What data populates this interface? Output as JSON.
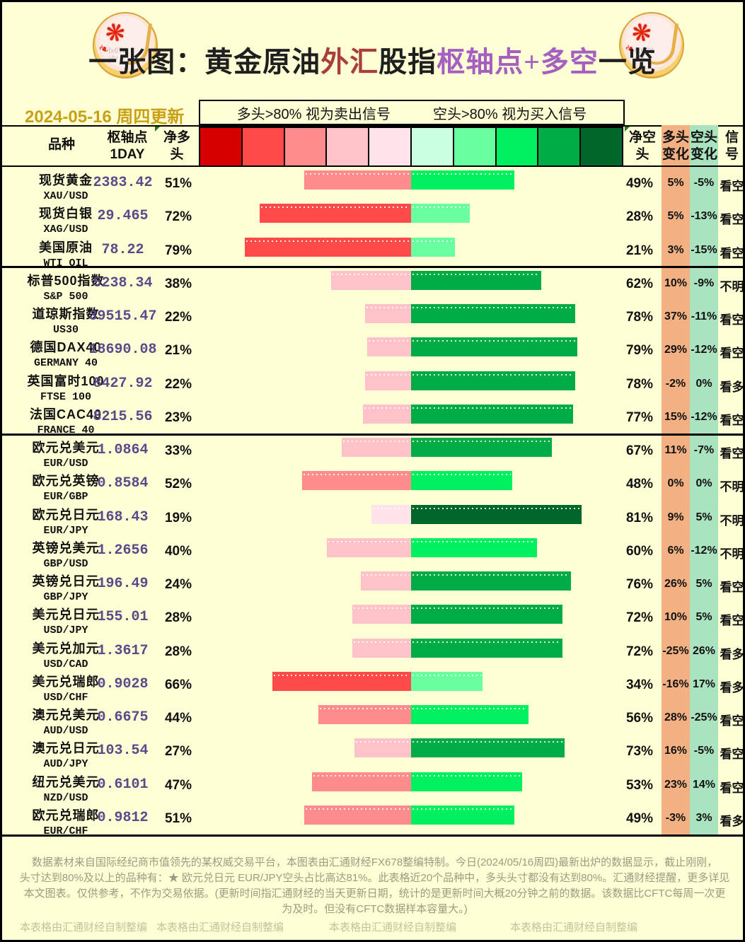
{
  "title": {
    "segments": [
      {
        "text": "一张图：黄金原油",
        "color": "#1F1F1F"
      },
      {
        "text": "外汇",
        "color": "#A93E3E"
      },
      {
        "text": "股指",
        "color": "#1F1F1F"
      },
      {
        "text": "枢轴点+多空",
        "color": "#A45FC0"
      },
      {
        "text": "一览",
        "color": "#1F1F1F"
      }
    ],
    "logo_watermark": "fx678\nylv"
  },
  "date_text": "2024-05-16 周四更新",
  "legend": {
    "long_note": "多头>80% 视为卖出信号",
    "short_note": "空头>80% 视为买入信号"
  },
  "columns": {
    "symbol": "品种",
    "pivot": "枢轴点\n1DAY",
    "net_long": "净多\n头",
    "net_short": "净空\n头",
    "long_change": "多头\n变化",
    "short_change": "空头\n变化",
    "signal": "信\n号"
  },
  "colors": {
    "scale": [
      "#D60000",
      "#FF4A4A",
      "#FF8C8C",
      "#FFC2C9",
      "#FFE3EA",
      "#CBFFE1",
      "#69FF9F",
      "#00F05F",
      "#00AC45",
      "#00662A"
    ],
    "long_change_col_bg": "#F3B183",
    "short_change_col_bg": "#A9E3BF",
    "background": "#FFFFD6",
    "date_text": "#C9A117",
    "pivot_text": "#5A4A8A"
  },
  "chart_data": {
    "type": "bar",
    "title": "一张图：黄金原油外汇股指枢轴点+多空一览",
    "note": "净多头(红色,左) 与 净空头(绿色,右) 百分比对称条形图，颜色深浅按20%分档",
    "categories": [
      "XAU/USD",
      "XAG/USD",
      "WTI OIL",
      "S&P 500",
      "US30",
      "GERMANY 40",
      "FTSE 100",
      "FRANCE 40",
      "EUR/USD",
      "EUR/GBP",
      "EUR/JPY",
      "GBP/USD",
      "GBP/JPY",
      "USD/JPY",
      "USD/CAD",
      "USD/CHF",
      "AUD/USD",
      "AUD/JPY",
      "NZD/USD",
      "EUR/CHF"
    ],
    "series": [
      {
        "name": "净多头%",
        "values": [
          51,
          72,
          79,
          38,
          22,
          21,
          22,
          23,
          33,
          52,
          19,
          40,
          24,
          28,
          28,
          66,
          44,
          27,
          47,
          51
        ]
      },
      {
        "name": "净空头%",
        "values": [
          49,
          28,
          21,
          62,
          78,
          79,
          78,
          77,
          67,
          48,
          81,
          60,
          76,
          72,
          72,
          34,
          56,
          73,
          53,
          49
        ]
      }
    ],
    "xlim": [
      -100,
      100
    ]
  },
  "rows": [
    {
      "name_cn": "现货黄金",
      "name_en": "XAU/USD",
      "pivot": "2383.42",
      "long_pct": 51,
      "short_pct": 49,
      "long_chg": "5%",
      "short_chg": "-5%",
      "signal": "看空"
    },
    {
      "name_cn": "现货白银",
      "name_en": "XAG/USD",
      "pivot": "29.465",
      "long_pct": 72,
      "short_pct": 28,
      "long_chg": "5%",
      "short_chg": "-13%",
      "signal": "看空"
    },
    {
      "name_cn": "美国原油",
      "name_en": "WTI OIL",
      "pivot": "78.22",
      "long_pct": 79,
      "short_pct": 21,
      "long_chg": "3%",
      "short_chg": "-15%",
      "signal": "看空",
      "group_end": true
    },
    {
      "name_cn": "标普500指数",
      "name_en": "S&P 500",
      "pivot": "5238.34",
      "long_pct": 38,
      "short_pct": 62,
      "long_chg": "10%",
      "short_chg": "-9%",
      "signal": "不明"
    },
    {
      "name_cn": "道琼斯指数",
      "name_en": "US30",
      "pivot": "39515.47",
      "long_pct": 22,
      "short_pct": 78,
      "long_chg": "37%",
      "short_chg": "-11%",
      "signal": "看空"
    },
    {
      "name_cn": "德国DAX40",
      "name_en": "GERMANY 40",
      "pivot": "18690.08",
      "long_pct": 21,
      "short_pct": 79,
      "long_chg": "29%",
      "short_chg": "-12%",
      "signal": "看空"
    },
    {
      "name_cn": "英国富时100",
      "name_en": "FTSE 100",
      "pivot": "8427.92",
      "long_pct": 22,
      "short_pct": 78,
      "long_chg": "-2%",
      "short_chg": "0%",
      "signal": "看多"
    },
    {
      "name_cn": "法国CAC40",
      "name_en": "FRANCE 40",
      "pivot": "8215.56",
      "long_pct": 23,
      "short_pct": 77,
      "long_chg": "15%",
      "short_chg": "-12%",
      "signal": "看空",
      "group_end": true
    },
    {
      "name_cn": "欧元兑美元",
      "name_en": "EUR/USD",
      "pivot": "1.0864",
      "long_pct": 33,
      "short_pct": 67,
      "long_chg": "11%",
      "short_chg": "-7%",
      "signal": "看空"
    },
    {
      "name_cn": "欧元兑英镑",
      "name_en": "EUR/GBP",
      "pivot": "0.8584",
      "long_pct": 52,
      "short_pct": 48,
      "long_chg": "0%",
      "short_chg": "0%",
      "signal": "不明"
    },
    {
      "name_cn": "欧元兑日元",
      "name_en": "EUR/JPY",
      "pivot": "168.43",
      "long_pct": 19,
      "short_pct": 81,
      "long_chg": "9%",
      "short_chg": "5%",
      "signal": "不明"
    },
    {
      "name_cn": "英镑兑美元",
      "name_en": "GBP/USD",
      "pivot": "1.2656",
      "long_pct": 40,
      "short_pct": 60,
      "long_chg": "6%",
      "short_chg": "-12%",
      "signal": "不明"
    },
    {
      "name_cn": "英镑兑日元",
      "name_en": "GBP/JPY",
      "pivot": "196.49",
      "long_pct": 24,
      "short_pct": 76,
      "long_chg": "26%",
      "short_chg": "5%",
      "signal": "看空"
    },
    {
      "name_cn": "美元兑日元",
      "name_en": "USD/JPY",
      "pivot": "155.01",
      "long_pct": 28,
      "short_pct": 72,
      "long_chg": "10%",
      "short_chg": "5%",
      "signal": "看空"
    },
    {
      "name_cn": "美元兑加元",
      "name_en": "USD/CAD",
      "pivot": "1.3617",
      "long_pct": 28,
      "short_pct": 72,
      "long_chg": "-25%",
      "short_chg": "26%",
      "signal": "看多"
    },
    {
      "name_cn": "美元兑瑞郎",
      "name_en": "USD/CHF",
      "pivot": "0.9028",
      "long_pct": 66,
      "short_pct": 34,
      "long_chg": "-16%",
      "short_chg": "17%",
      "signal": "看多"
    },
    {
      "name_cn": "澳元兑美元",
      "name_en": "AUD/USD",
      "pivot": "0.6675",
      "long_pct": 44,
      "short_pct": 56,
      "long_chg": "28%",
      "short_chg": "-25%",
      "signal": "看空"
    },
    {
      "name_cn": "澳元兑日元",
      "name_en": "AUD/JPY",
      "pivot": "103.54",
      "long_pct": 27,
      "short_pct": 73,
      "long_chg": "16%",
      "short_chg": "-5%",
      "signal": "看空"
    },
    {
      "name_cn": "纽元兑美元",
      "name_en": "NZD/USD",
      "pivot": "0.6101",
      "long_pct": 47,
      "short_pct": 53,
      "long_chg": "23%",
      "short_chg": "14%",
      "signal": "看空"
    },
    {
      "name_cn": "欧元兑瑞郎",
      "name_en": "EUR/CHF",
      "pivot": "0.9812",
      "long_pct": 51,
      "short_pct": 49,
      "long_chg": "-3%",
      "short_chg": "3%",
      "signal": "看多"
    }
  ],
  "footer": {
    "lines": [
      "数据素材来自国际经纪商市值领先的某权威交易平台，本图表由汇通财经FX678整编特制。今日(2024/05/16周四)最新出炉的数据显示，截止刚刚，",
      "头寸达到80%及以上的品种有：★ 欧元兑日元 EUR/JPY空头占比高达81%。此表格近20个品种中，多头头寸都没有达到80%。汇通财经提醒，更多详见",
      "本文图表。仅供参考，不作为交易依据。(更新时间指汇通财经的当天更新日期，统计的是更新时间大概20分钟之前的数据。该数据比CFTC每周一次更",
      "为及时。但没有CFTC数据样本容量大。)"
    ],
    "watermarks": [
      "本表格由汇通财经自制整编",
      "本表格由汇通财经自制整编",
      "本表格由汇通财经自制整编",
      "本表格由汇通财经自制整编"
    ]
  }
}
